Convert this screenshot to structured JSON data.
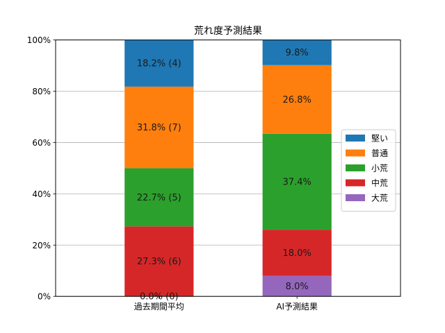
{
  "chart_data": {
    "type": "bar",
    "stacked": true,
    "title": "荒れ度予測結果",
    "categories": [
      "過去期間平均",
      "AI予測結果"
    ],
    "ylim": [
      0,
      100
    ],
    "y_ticks": [
      "0%",
      "20%",
      "40%",
      "60%",
      "80%",
      "100%"
    ],
    "grid": "horizontal",
    "legend_position": "right",
    "series": [
      {
        "name": "大荒",
        "color": "#9467bd",
        "values": [
          0.0,
          8.0
        ],
        "labels": [
          "0.0% (0)",
          "8.0%"
        ]
      },
      {
        "name": "中荒",
        "color": "#d62728",
        "values": [
          27.3,
          18.0
        ],
        "labels": [
          "27.3% (6)",
          "18.0%"
        ]
      },
      {
        "name": "小荒",
        "color": "#2ca02c",
        "values": [
          22.7,
          37.4
        ],
        "labels": [
          "22.7% (5)",
          "37.4%"
        ]
      },
      {
        "name": "普通",
        "color": "#ff7f0e",
        "values": [
          31.8,
          26.8
        ],
        "labels": [
          "31.8% (7)",
          "26.8%"
        ]
      },
      {
        "name": "堅い",
        "color": "#1f77b4",
        "values": [
          18.2,
          9.8
        ],
        "labels": [
          "18.2% (4)",
          "9.8%"
        ]
      }
    ],
    "legend_order": [
      "堅い",
      "普通",
      "小荒",
      "中荒",
      "大荒"
    ]
  }
}
